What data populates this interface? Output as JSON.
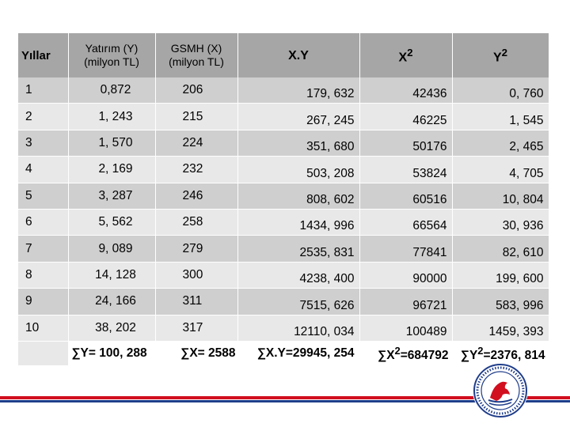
{
  "table": {
    "headers": {
      "year": "Yıllar",
      "y_line1": "Yatırım (Y)",
      "y_line2": "(milyon TL)",
      "x_line1": "GSMH (X)",
      "x_line2": "(milyon TL)",
      "xy": "X.Y",
      "x2_base": "X",
      "x2_sup": "2",
      "y2_base": "Y",
      "y2_sup": "2"
    },
    "rows": [
      {
        "year": "1",
        "y": "0,872",
        "x": "206",
        "xy": "179, 632",
        "x2": "42436",
        "y2": "0, 760"
      },
      {
        "year": "2",
        "y": "1, 243",
        "x": "215",
        "xy": "267, 245",
        "x2": "46225",
        "y2": "1, 545"
      },
      {
        "year": "3",
        "y": "1, 570",
        "x": "224",
        "xy": "351, 680",
        "x2": "50176",
        "y2": "2, 465"
      },
      {
        "year": "4",
        "y": "2, 169",
        "x": "232",
        "xy": "503, 208",
        "x2": "53824",
        "y2": "4, 705"
      },
      {
        "year": "5",
        "y": "3, 287",
        "x": "246",
        "xy": "808, 602",
        "x2": "60516",
        "y2": "10, 804"
      },
      {
        "year": "6",
        "y": "5, 562",
        "x": "258",
        "xy": "1434, 996",
        "x2": "66564",
        "y2": "30, 936"
      },
      {
        "year": "7",
        "y": "9, 089",
        "x": "279",
        "xy": "2535, 831",
        "x2": "77841",
        "y2": "82, 610"
      },
      {
        "year": "8",
        "y": "14, 128",
        "x": "300",
        "xy": "4238, 400",
        "x2": "90000",
        "y2": "199, 600"
      },
      {
        "year": "9",
        "y": "24, 166",
        "x": "311",
        "xy": "7515, 626",
        "x2": "96721",
        "y2": "583, 996"
      },
      {
        "year": "10",
        "y": "38, 202",
        "x": "317",
        "xy": "12110, 034",
        "x2": "100489",
        "y2": "1459, 393"
      }
    ],
    "totals": {
      "sum_y": "∑Y= 100, 288",
      "sum_x": "∑X= 2588",
      "sum_xy": "∑X.Y=29945, 254",
      "sum_x2_pre": "∑X",
      "sum_x2_sup": "2",
      "sum_x2_post": "=684792",
      "sum_y2_pre": "∑Y",
      "sum_y2_sup": "2",
      "sum_y2_post": "=2376, 814"
    }
  },
  "colors": {
    "header_bg": "#a6a6a6",
    "row_dark": "#cfcfcf",
    "row_light": "#e8e8e8",
    "footer_red": "#d10f1f",
    "footer_blue": "#1f3d8a"
  },
  "logo": {
    "icon": "university-seal-icon"
  }
}
